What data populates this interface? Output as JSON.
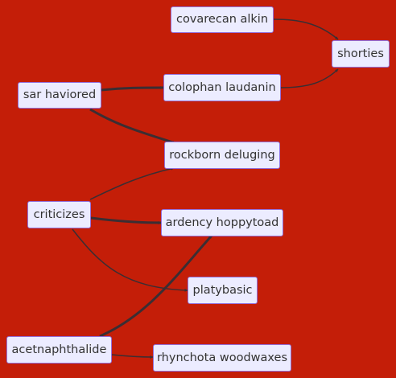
{
  "diagram": {
    "type": "flowchart",
    "direction": "left-to-right",
    "background_color": "#c41e08",
    "node_fill": "#ececff",
    "node_border": "#9370db",
    "edge_color": "#3b2e33",
    "nodes": [
      {
        "id": "covarecan_alkin",
        "label": "covarecan alkin"
      },
      {
        "id": "shorties",
        "label": "shorties"
      },
      {
        "id": "sar_haviored",
        "label": "sar haviored"
      },
      {
        "id": "colophan_laudanin",
        "label": "colophan laudanin"
      },
      {
        "id": "rockborn_deluging",
        "label": "rockborn deluging"
      },
      {
        "id": "criticizes",
        "label": "criticizes"
      },
      {
        "id": "ardency_hoppytoad",
        "label": "ardency hoppytoad"
      },
      {
        "id": "platybasic",
        "label": "platybasic"
      },
      {
        "id": "acetnaphthalide",
        "label": "acetnaphthalide"
      },
      {
        "id": "rhynchota_woodwaxes",
        "label": "rhynchota woodwaxes"
      }
    ],
    "edges": [
      {
        "from": "covarecan_alkin",
        "to": "shorties",
        "weight": "thin"
      },
      {
        "from": "colophan_laudanin",
        "to": "shorties",
        "weight": "thin"
      },
      {
        "from": "sar_haviored",
        "to": "colophan_laudanin",
        "weight": "thick"
      },
      {
        "from": "sar_haviored",
        "to": "rockborn_deluging",
        "weight": "thick"
      },
      {
        "from": "criticizes",
        "to": "rockborn_deluging",
        "weight": "thin"
      },
      {
        "from": "criticizes",
        "to": "ardency_hoppytoad",
        "weight": "thick"
      },
      {
        "from": "criticizes",
        "to": "platybasic",
        "weight": "thin"
      },
      {
        "from": "acetnaphthalide",
        "to": "ardency_hoppytoad",
        "weight": "thick"
      },
      {
        "from": "acetnaphthalide",
        "to": "rhynchota_woodwaxes",
        "weight": "thin"
      }
    ]
  }
}
